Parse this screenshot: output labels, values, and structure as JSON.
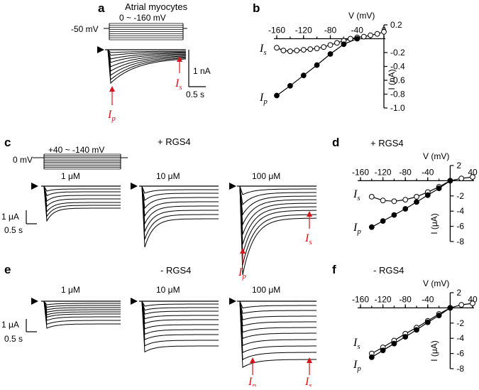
{
  "figure": {
    "panel_labels": [
      "a",
      "b",
      "c",
      "d",
      "e",
      "f"
    ],
    "panel_a": {
      "title": "Atrial myocytes",
      "protocol_range": "0 ~ -160 mV",
      "holding": "-50 mV",
      "scale_current": "1 nA",
      "scale_time": "0.5 s",
      "peak_label": "I",
      "peak_sub": "p",
      "steady_label": "I",
      "steady_sub": "s"
    },
    "panel_c": {
      "condition": "+ RGS4",
      "protocol_range": "+40 ~ -140 mV",
      "holding": "0 mV",
      "concentrations": [
        "1 μM",
        "10 μM",
        "100 μM"
      ],
      "scale_current": "1 μA",
      "scale_time": "0.5 s"
    },
    "panel_e": {
      "condition": "- RGS4",
      "concentrations": [
        "1 μM",
        "10 μM",
        "100 μM"
      ],
      "scale_current": "1 μA",
      "scale_time": "0.5 s"
    },
    "panel_d_title": "+ RGS4",
    "panel_f_title": "- RGS4",
    "series_labels": {
      "peak": "I",
      "peak_sub": "p",
      "steady": "I",
      "steady_sub": "s"
    }
  },
  "chart_data": [
    {
      "panel": "b",
      "type": "line",
      "xlabel": "V (mV)",
      "ylabel": "I (nA)",
      "xlim": [
        -160,
        0
      ],
      "ylim": [
        -1.0,
        0.2
      ],
      "xticks": [
        "-160",
        "-120",
        "-80",
        "-40",
        "0"
      ],
      "yticks": [
        "0.2",
        "-0.2",
        "-0.4",
        "-0.6",
        "-0.8",
        "-1.0"
      ],
      "series": [
        {
          "name": "Is",
          "marker": "open",
          "x": [
            -160,
            -150,
            -140,
            -130,
            -120,
            -110,
            -100,
            -90,
            -80,
            -70,
            -60,
            -50,
            -40,
            -30,
            -20,
            -10,
            0
          ],
          "y": [
            -0.13,
            -0.17,
            -0.18,
            -0.17,
            -0.16,
            -0.15,
            -0.14,
            -0.12,
            -0.09,
            -0.06,
            -0.03,
            0.0,
            0.02,
            0.03,
            0.05,
            0.07,
            0.1
          ]
        },
        {
          "name": "Ip",
          "marker": "filled",
          "x": [
            -160,
            -140,
            -120,
            -100,
            -80,
            -60,
            -40
          ],
          "y": [
            -0.82,
            -0.68,
            -0.53,
            -0.38,
            -0.22,
            -0.08,
            0.0
          ]
        }
      ]
    },
    {
      "panel": "d",
      "type": "line",
      "xlabel": "V (mV)",
      "ylabel": "I (μA)",
      "xlim": [
        -160,
        40
      ],
      "ylim": [
        -8,
        2
      ],
      "xticks": [
        "-160",
        "-120",
        "-80",
        "-40",
        "40"
      ],
      "yticks": [
        "2",
        "-2",
        "-4",
        "-6",
        "-8"
      ],
      "series": [
        {
          "name": "Is",
          "marker": "open",
          "x": [
            -140,
            -120,
            -100,
            -80,
            -60,
            -40,
            -20,
            0,
            20,
            40
          ],
          "y": [
            -2.1,
            -2.6,
            -2.7,
            -2.5,
            -2.1,
            -1.5,
            -0.8,
            0,
            0.3,
            0.5
          ]
        },
        {
          "name": "Ip",
          "marker": "filled",
          "x": [
            -140,
            -120,
            -100,
            -80,
            -60,
            -40,
            -20,
            0
          ],
          "y": [
            -6.1,
            -5.3,
            -4.5,
            -3.7,
            -2.8,
            -1.9,
            -1.0,
            0
          ]
        }
      ]
    },
    {
      "panel": "f",
      "type": "line",
      "xlabel": "V (mV)",
      "ylabel": "I (μA)",
      "xlim": [
        -160,
        40
      ],
      "ylim": [
        -8,
        2
      ],
      "xticks": [
        "-160",
        "-120",
        "-80",
        "-40",
        "40"
      ],
      "yticks": [
        "2",
        "-2",
        "-4",
        "-6",
        "-8"
      ],
      "series": [
        {
          "name": "Is",
          "marker": "open",
          "x": [
            -140,
            -120,
            -100,
            -80,
            -60,
            -40,
            -20,
            0,
            20,
            40
          ],
          "y": [
            -6.0,
            -5.2,
            -4.3,
            -3.4,
            -2.6,
            -1.7,
            -0.8,
            0,
            0.4,
            0.6
          ]
        },
        {
          "name": "Ip",
          "marker": "filled",
          "x": [
            -140,
            -120,
            -100,
            -80,
            -60,
            -40,
            -20,
            0
          ],
          "y": [
            -6.5,
            -5.6,
            -4.7,
            -3.8,
            -2.9,
            -1.9,
            -1.0,
            0
          ]
        }
      ]
    }
  ]
}
